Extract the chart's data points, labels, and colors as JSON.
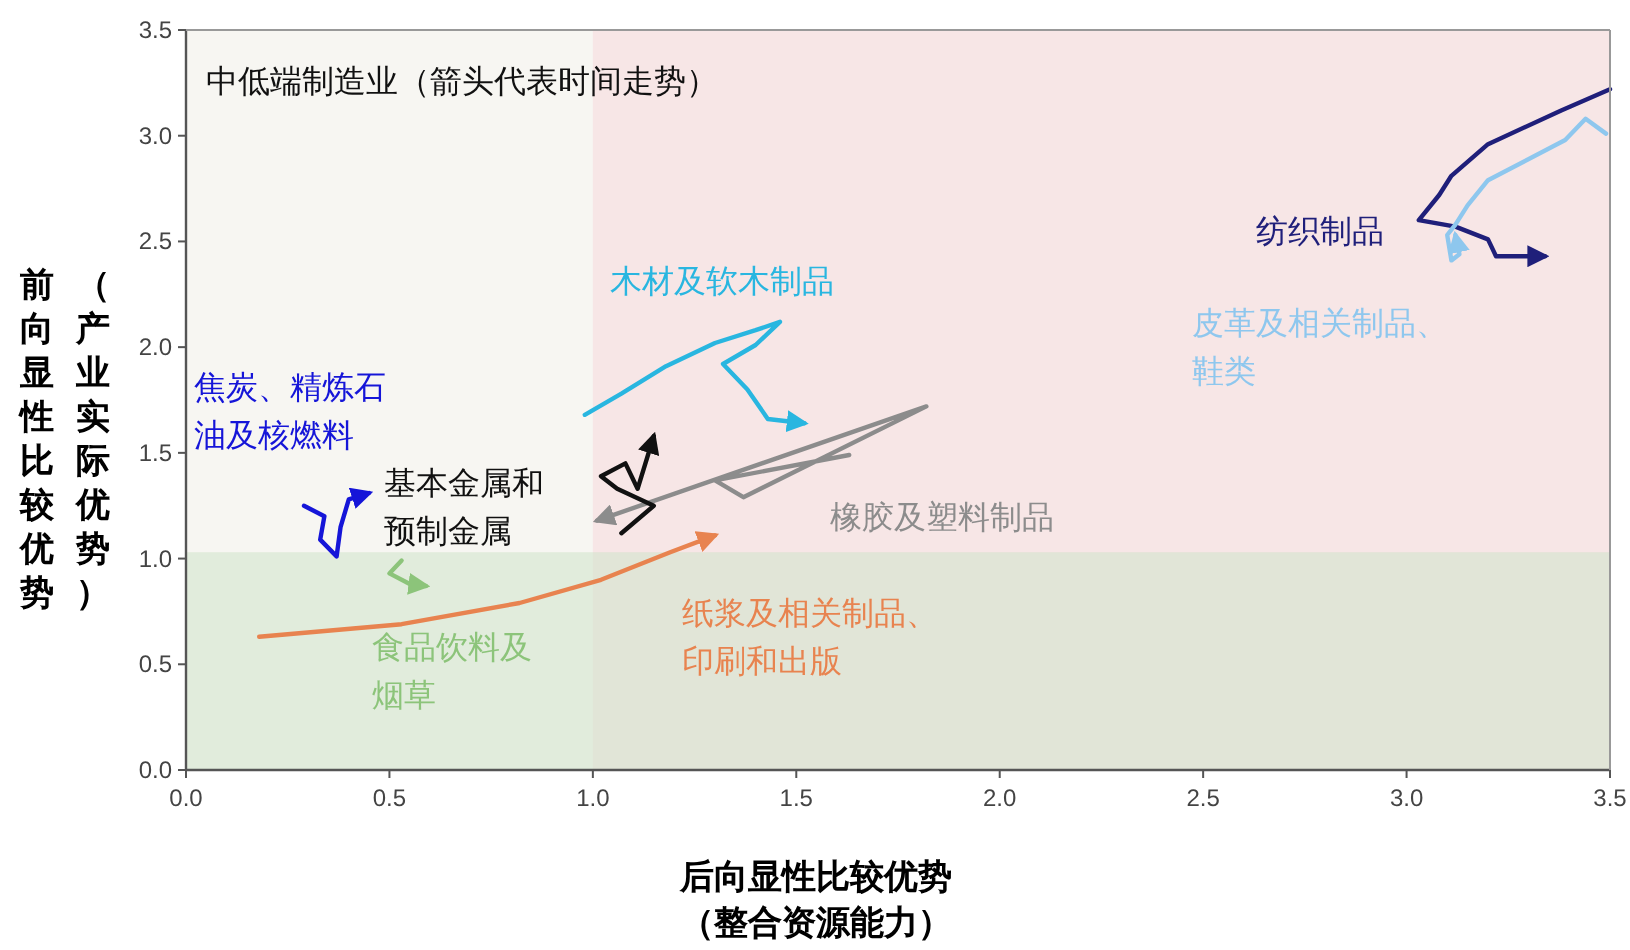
{
  "chart_data": {
    "type": "line",
    "title": "中低端制造业（箭头代表时间走势）",
    "xlabel": "后向显性比较优势（整合资源能力）",
    "ylabel": "前向显性比较优势（产业实际优势）",
    "xlim": [
      0,
      3.5
    ],
    "ylim": [
      0,
      3.5
    ],
    "xticks": [
      {
        "value": 0,
        "label": "0.0"
      },
      {
        "value": 0.5,
        "label": "0.5"
      },
      {
        "value": 1,
        "label": "1.0"
      },
      {
        "value": 1.5,
        "label": "1.5"
      },
      {
        "value": 2,
        "label": "2.0"
      },
      {
        "value": 2.5,
        "label": "2.5"
      },
      {
        "value": 3,
        "label": "3.0"
      },
      {
        "value": 3.5,
        "label": "3.5"
      }
    ],
    "yticks": [
      {
        "value": 0,
        "label": "0.0"
      },
      {
        "value": 0.5,
        "label": "0.5"
      },
      {
        "value": 1,
        "label": "1.0"
      },
      {
        "value": 1.5,
        "label": "1.5"
      },
      {
        "value": 2,
        "label": "2.0"
      },
      {
        "value": 2.5,
        "label": "2.5"
      },
      {
        "value": 3,
        "label": "3.0"
      },
      {
        "value": 3.5,
        "label": "3.5"
      }
    ],
    "grid": false,
    "marker": "none",
    "line_style": "solid",
    "bands": [
      {
        "axis": "x",
        "from": 1,
        "to": 3.5,
        "color": "#f7d9dc"
      },
      {
        "axis": "y",
        "from": 0,
        "to": 1.03,
        "color": "#cfe3cb"
      }
    ],
    "series": [
      {
        "name": "纺织制品",
        "color": "#1f1f7a",
        "x": [
          3.5,
          3.38,
          3.2,
          3.11,
          3.08,
          3.03,
          3.12,
          3.2,
          3.22,
          3.34
        ],
        "values": [
          3.22,
          3.12,
          2.96,
          2.81,
          2.72,
          2.6,
          2.57,
          2.51,
          2.43,
          2.43
        ]
      },
      {
        "name": "皮革及相关制品、鞋类",
        "color": "#8ec7ee",
        "x": [
          3.49,
          3.44,
          3.39,
          3.2,
          3.15,
          3.12,
          3.1,
          3.11,
          3.13,
          3.12
        ],
        "values": [
          3.01,
          3.08,
          2.98,
          2.79,
          2.67,
          2.58,
          2.53,
          2.41,
          2.44,
          2.53
        ]
      },
      {
        "name": "木材及软木制品",
        "color": "#29b6e0",
        "x": [
          0.98,
          1.07,
          1.18,
          1.3,
          1.4,
          1.46,
          1.4,
          1.32,
          1.38,
          1.43,
          1.52
        ],
        "values": [
          1.68,
          1.78,
          1.91,
          2.02,
          2.08,
          2.12,
          2.01,
          1.92,
          1.8,
          1.66,
          1.64
        ]
      },
      {
        "name": "橡胶及塑料制品",
        "color": "#8c8c8c",
        "x": [
          1.63,
          1.3,
          1.37,
          1.82,
          1.01
        ],
        "values": [
          1.49,
          1.37,
          1.29,
          1.72,
          1.18
        ]
      },
      {
        "name": "基本金属和预制金属",
        "color": "#111111",
        "x": [
          1.07,
          1.15,
          1.06,
          1.02,
          1.08,
          1.11,
          1.15
        ],
        "values": [
          1.12,
          1.25,
          1.33,
          1.39,
          1.45,
          1.33,
          1.58
        ]
      },
      {
        "name": "焦炭、精炼石油及核燃料",
        "color": "#1515d8",
        "x": [
          0.29,
          0.34,
          0.33,
          0.37,
          0.38,
          0.4,
          0.45
        ],
        "values": [
          1.25,
          1.2,
          1.09,
          1.01,
          1.15,
          1.28,
          1.31
        ]
      },
      {
        "name": "食品饮料及烟草",
        "color": "#8cc47a",
        "x": [
          0.53,
          0.5,
          0.55,
          0.59
        ],
        "values": [
          0.99,
          0.93,
          0.88,
          0.87
        ]
      },
      {
        "name": "纸浆及相关制品、印刷和出版",
        "color": "#e8834f",
        "x": [
          0.18,
          0.53,
          0.82,
          1.02,
          1.19,
          1.3
        ],
        "values": [
          0.63,
          0.69,
          0.79,
          0.9,
          1.03,
          1.11
        ]
      }
    ]
  }
}
